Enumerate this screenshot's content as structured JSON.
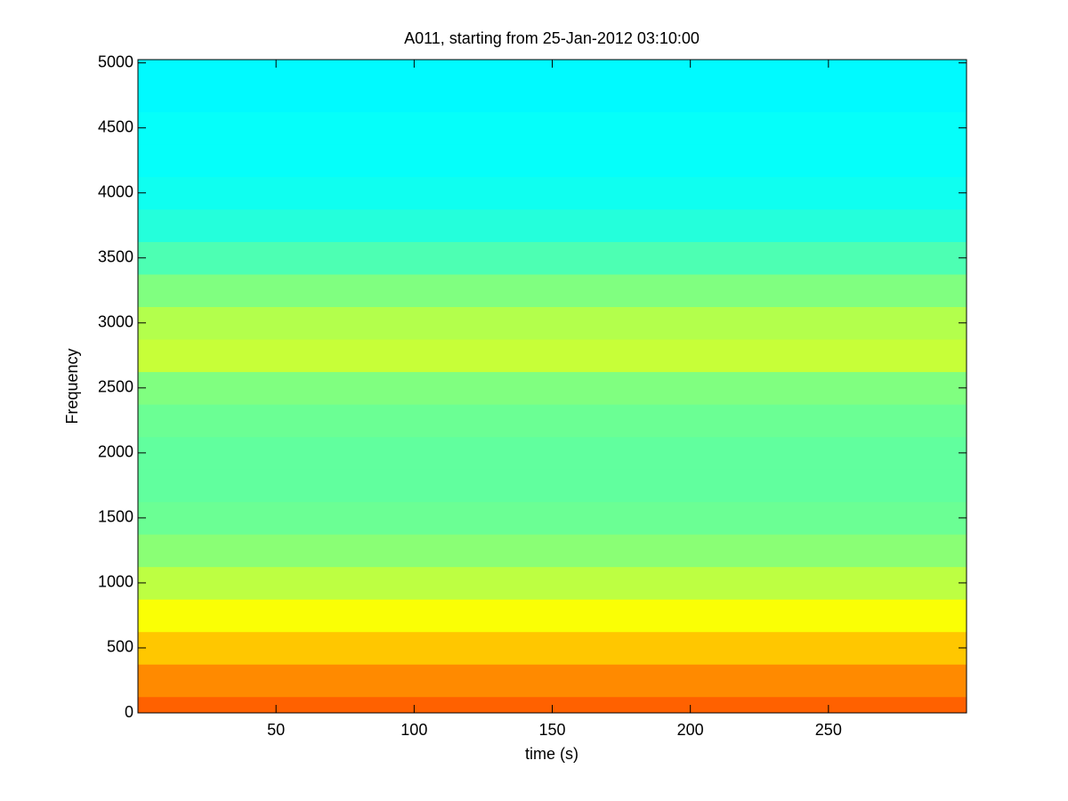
{
  "chart_data": {
    "type": "spectrogram",
    "title": "A011, starting from 25-Jan-2012 03:10:00",
    "x_label": "time (s)",
    "y_label": "Frequency",
    "xlim": [
      0,
      300
    ],
    "xticks": [
      50,
      100,
      150,
      200,
      250
    ],
    "ylim": [
      0,
      5025
    ],
    "yticks": [
      0,
      500,
      1000,
      1500,
      2000,
      2500,
      3000,
      3500,
      4000,
      4500,
      5000
    ],
    "colormap": "jet",
    "frequencies": [
      0,
      250,
      500,
      750,
      1000,
      1250,
      1500,
      1750,
      2000,
      2250,
      2500,
      2750,
      3000,
      3250,
      3500,
      3750,
      4000,
      4250,
      4500,
      4750,
      5000
    ],
    "intensity": [
      0.78,
      0.74,
      0.68,
      0.62,
      0.56,
      0.51,
      0.48,
      0.47,
      0.47,
      0.48,
      0.5,
      0.57,
      0.55,
      0.5,
      0.45,
      0.41,
      0.39,
      0.38,
      0.38,
      0.37,
      0.37
    ]
  }
}
